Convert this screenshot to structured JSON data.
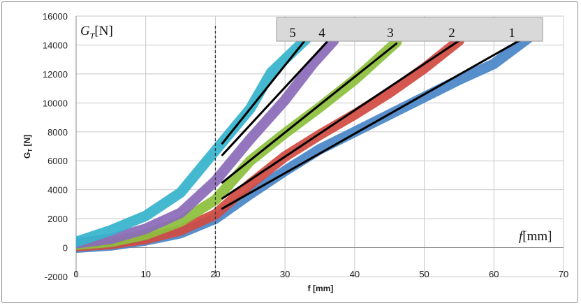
{
  "chart_data": {
    "type": "scatter",
    "title": "",
    "xlabel": "f [mm]",
    "ylabel_main": "G",
    "ylabel_sub": "T",
    "ylabel_unit": " [N]",
    "xlim": [
      0,
      70
    ],
    "ylim": [
      -2000,
      16000
    ],
    "x_ticks": [
      0,
      10,
      20,
      30,
      40,
      50,
      60,
      70
    ],
    "y_ticks": [
      -2000,
      0,
      2000,
      4000,
      6000,
      8000,
      10000,
      12000,
      14000,
      16000
    ],
    "grid": true,
    "vertical_marker": {
      "x": 20,
      "style": "dashed"
    },
    "annotation_y": {
      "main": "G",
      "sub": "T",
      "unit": "[N]"
    },
    "annotation_x": {
      "main": "f",
      "unit": "[mm]"
    },
    "legend": {
      "placement": "top-right",
      "labels": [
        "5",
        "4",
        "3",
        "2",
        "1"
      ]
    },
    "series": [
      {
        "name": "1",
        "color": "#4a86c8",
        "points": [
          [
            0,
            0
          ],
          [
            5,
            150
          ],
          [
            10,
            500
          ],
          [
            15,
            1000
          ],
          [
            20,
            2000
          ],
          [
            25,
            3700
          ],
          [
            30,
            5300
          ],
          [
            35,
            6800
          ],
          [
            40,
            8000
          ],
          [
            45,
            9200
          ],
          [
            50,
            10400
          ],
          [
            55,
            11600
          ],
          [
            60,
            12700
          ],
          [
            65,
            14500
          ]
        ],
        "fit": [
          [
            21,
            2700
          ],
          [
            64,
            14400
          ]
        ]
      },
      {
        "name": "2",
        "color": "#d14b42",
        "points": [
          [
            0,
            100
          ],
          [
            5,
            250
          ],
          [
            10,
            600
          ],
          [
            15,
            1200
          ],
          [
            20,
            2300
          ],
          [
            25,
            4400
          ],
          [
            30,
            6300
          ],
          [
            35,
            7800
          ],
          [
            40,
            9200
          ],
          [
            45,
            10700
          ],
          [
            50,
            12400
          ],
          [
            55,
            14300
          ]
        ],
        "fit": [
          [
            21,
            3400
          ],
          [
            55,
            14300
          ]
        ]
      },
      {
        "name": "3",
        "color": "#8dbf3c",
        "points": [
          [
            0,
            200
          ],
          [
            5,
            400
          ],
          [
            10,
            900
          ],
          [
            15,
            1800
          ],
          [
            20,
            3300
          ],
          [
            25,
            6000
          ],
          [
            30,
            7900
          ],
          [
            35,
            9700
          ],
          [
            40,
            11600
          ],
          [
            46,
            14200
          ]
        ],
        "fit": [
          [
            21,
            4500
          ],
          [
            46,
            14100
          ]
        ]
      },
      {
        "name": "4",
        "color": "#8b6cb8",
        "points": [
          [
            0,
            300
          ],
          [
            5,
            600
          ],
          [
            10,
            1300
          ],
          [
            15,
            2400
          ],
          [
            20,
            4600
          ],
          [
            25,
            7500
          ],
          [
            30,
            10200
          ],
          [
            34,
            12700
          ],
          [
            37,
            14300
          ]
        ],
        "fit": [
          [
            21,
            6400
          ],
          [
            36,
            14200
          ]
        ]
      },
      {
        "name": "5",
        "color": "#36b4cc",
        "points": [
          [
            0,
            400
          ],
          [
            5,
            1200
          ],
          [
            10,
            2200
          ],
          [
            15,
            3800
          ],
          [
            20,
            6700
          ],
          [
            25,
            9600
          ],
          [
            28,
            12100
          ],
          [
            33,
            14400
          ]
        ],
        "fit": [
          [
            21,
            7200
          ],
          [
            33,
            14400
          ]
        ]
      }
    ]
  }
}
